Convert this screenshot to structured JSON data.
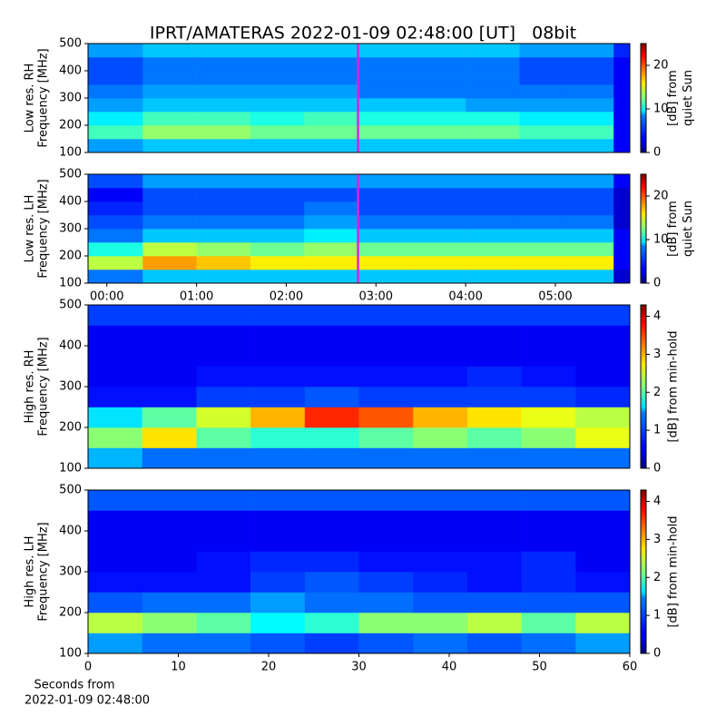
{
  "title": "IPRT/AMATERAS 2022-01-09 02:48:00 [UT]   08bit",
  "chart_data": [
    {
      "type": "heatmap",
      "ylabel": [
        "Low res. RH",
        "Frequency [MHz]"
      ],
      "colorbar_label": [
        "[dB] from",
        "quiet Sun"
      ],
      "cmap": "jet",
      "clim": [
        0,
        25
      ],
      "cticks": [
        0,
        10,
        20
      ],
      "xlim": [
        -0.21,
        5.83
      ],
      "ylim": [
        100,
        500
      ],
      "yticks": [
        100,
        200,
        300,
        400,
        500
      ],
      "marker_x": 2.8,
      "marker_color": "#e020e0",
      "x_bins": [
        -0.21,
        0.4,
        1,
        1.6,
        2.2,
        2.8,
        3.4,
        4,
        4.6,
        5.1,
        5.65,
        5.83
      ],
      "y_bins": [
        100,
        150,
        200,
        250,
        300,
        350,
        400,
        450,
        500
      ],
      "values": [
        [
          7,
          8,
          8,
          8,
          8,
          8,
          8,
          8,
          8,
          8,
          3
        ],
        [
          11,
          13,
          13,
          12,
          12,
          12,
          12,
          12,
          11,
          11,
          3
        ],
        [
          9,
          11,
          11,
          10,
          11,
          10,
          10,
          10,
          9,
          9,
          3
        ],
        [
          7,
          8,
          8,
          8,
          8,
          8,
          8,
          7,
          7,
          7,
          3
        ],
        [
          6,
          7,
          7,
          7,
          7,
          6,
          6,
          6,
          6,
          6,
          3
        ],
        [
          5,
          6,
          6,
          6,
          6,
          6,
          6,
          6,
          5,
          5,
          3
        ],
        [
          5,
          6,
          6,
          6,
          6,
          6,
          6,
          6,
          5,
          5,
          3
        ],
        [
          7,
          8,
          8,
          8,
          8,
          8,
          8,
          8,
          7,
          7,
          4
        ]
      ]
    },
    {
      "type": "heatmap",
      "ylabel": [
        "Low res. LH",
        "Frequency [MHz]"
      ],
      "colorbar_label": [
        "[dB] from",
        "quiet Sun"
      ],
      "cmap": "jet",
      "clim": [
        0,
        25
      ],
      "cticks": [
        0,
        10,
        20
      ],
      "xlim": [
        -0.21,
        5.83
      ],
      "ylim": [
        100,
        500
      ],
      "yticks": [
        100,
        200,
        300,
        400,
        500
      ],
      "xticks": [
        {
          "value": 0,
          "label": "00:00"
        },
        {
          "value": 1,
          "label": "01:00"
        },
        {
          "value": 2,
          "label": "02:00"
        },
        {
          "value": 3,
          "label": "03:00"
        },
        {
          "value": 4,
          "label": "04:00"
        },
        {
          "value": 5,
          "label": "05:00"
        }
      ],
      "marker_x": 2.8,
      "marker_color": "#e020e0",
      "x_bins": [
        -0.21,
        0.4,
        1,
        1.6,
        2.2,
        2.8,
        3.4,
        4,
        4.6,
        5.1,
        5.65,
        5.83
      ],
      "y_bins": [
        100,
        150,
        200,
        250,
        300,
        350,
        400,
        450,
        500
      ],
      "values": [
        [
          6,
          8,
          8,
          8,
          8,
          8,
          8,
          8,
          8,
          8,
          2
        ],
        [
          14,
          18,
          17,
          16,
          16,
          16,
          16,
          16,
          16,
          16,
          3
        ],
        [
          10,
          14,
          13,
          12,
          13,
          12,
          12,
          12,
          12,
          12,
          3
        ],
        [
          6,
          8,
          8,
          8,
          9,
          8,
          8,
          8,
          8,
          8,
          3
        ],
        [
          5,
          6,
          6,
          6,
          7,
          6,
          6,
          6,
          6,
          6,
          2
        ],
        [
          4,
          5,
          5,
          5,
          6,
          5,
          5,
          5,
          5,
          5,
          2
        ],
        [
          3,
          5,
          5,
          5,
          5,
          5,
          5,
          5,
          5,
          5,
          2
        ],
        [
          5,
          7,
          7,
          7,
          7,
          7,
          7,
          7,
          7,
          7,
          3
        ]
      ]
    },
    {
      "type": "heatmap",
      "ylabel": [
        "High res. RH",
        "Frequency [MHz]"
      ],
      "colorbar_label": [
        "[dB] from min-hold"
      ],
      "cmap": "jet",
      "clim": [
        0,
        4.3
      ],
      "cticks": [
        0,
        1,
        2,
        3,
        4
      ],
      "xlim": [
        0,
        60
      ],
      "ylim": [
        100,
        500
      ],
      "yticks": [
        100,
        200,
        300,
        400,
        500
      ],
      "x_bins": [
        0,
        6,
        12,
        18,
        24,
        30,
        36,
        42,
        48,
        54,
        60
      ],
      "y_bins": [
        100,
        150,
        200,
        250,
        300,
        350,
        400,
        450,
        500
      ],
      "values": [
        [
          1.3,
          1.0,
          1.0,
          1.0,
          1.0,
          1.0,
          1.0,
          1.0,
          1.0,
          1.0
        ],
        [
          2.2,
          2.8,
          2.0,
          1.8,
          1.8,
          2.0,
          2.2,
          2.0,
          2.2,
          2.6
        ],
        [
          1.5,
          2.0,
          2.5,
          3.0,
          3.6,
          3.4,
          3.0,
          2.8,
          2.6,
          2.4
        ],
        [
          0.6,
          0.6,
          0.8,
          0.8,
          0.9,
          0.8,
          0.8,
          0.8,
          0.8,
          0.7
        ],
        [
          0.5,
          0.5,
          0.6,
          0.6,
          0.6,
          0.6,
          0.6,
          0.7,
          0.6,
          0.5
        ],
        [
          0.5,
          0.5,
          0.5,
          0.5,
          0.5,
          0.5,
          0.5,
          0.5,
          0.5,
          0.5
        ],
        [
          0.5,
          0.5,
          0.5,
          0.5,
          0.5,
          0.5,
          0.5,
          0.5,
          0.5,
          0.5
        ],
        [
          0.8,
          0.8,
          0.8,
          0.8,
          0.8,
          0.8,
          0.8,
          0.8,
          0.8,
          0.8
        ]
      ]
    },
    {
      "type": "heatmap",
      "ylabel": [
        "High res. LH",
        "Frequency [MHz]"
      ],
      "colorbar_label": [
        "[dB] from min-hold"
      ],
      "cmap": "jet",
      "clim": [
        0,
        4.3
      ],
      "cticks": [
        0,
        1,
        2,
        3,
        4
      ],
      "xlim": [
        0,
        60
      ],
      "ylim": [
        100,
        500
      ],
      "yticks": [
        100,
        200,
        300,
        400,
        500
      ],
      "xticks": [
        0,
        10,
        20,
        30,
        40,
        50,
        60
      ],
      "xlabel": [
        "Seconds from",
        "2022-01-09 02:48:00"
      ],
      "x_bins": [
        0,
        6,
        12,
        18,
        24,
        30,
        36,
        42,
        48,
        54,
        60
      ],
      "y_bins": [
        100,
        150,
        200,
        250,
        300,
        350,
        400,
        450,
        500
      ],
      "values": [
        [
          1.2,
          1.0,
          1.0,
          0.9,
          0.8,
          0.9,
          1.0,
          0.9,
          1.0,
          1.2
        ],
        [
          2.4,
          2.2,
          2.0,
          1.6,
          1.8,
          2.2,
          2.2,
          2.4,
          2.0,
          2.4
        ],
        [
          0.9,
          1.0,
          1.0,
          1.2,
          1.0,
          1.0,
          0.9,
          0.9,
          0.9,
          0.9
        ],
        [
          0.6,
          0.6,
          0.6,
          0.8,
          0.9,
          0.8,
          0.7,
          0.6,
          0.7,
          0.6
        ],
        [
          0.5,
          0.5,
          0.6,
          0.7,
          0.7,
          0.6,
          0.6,
          0.6,
          0.7,
          0.5
        ],
        [
          0.5,
          0.5,
          0.5,
          0.5,
          0.5,
          0.5,
          0.5,
          0.5,
          0.5,
          0.5
        ],
        [
          0.5,
          0.5,
          0.5,
          0.5,
          0.5,
          0.5,
          0.5,
          0.5,
          0.5,
          0.5
        ],
        [
          0.9,
          0.9,
          0.9,
          0.9,
          0.9,
          0.9,
          0.9,
          0.9,
          0.9,
          0.9
        ]
      ]
    }
  ]
}
